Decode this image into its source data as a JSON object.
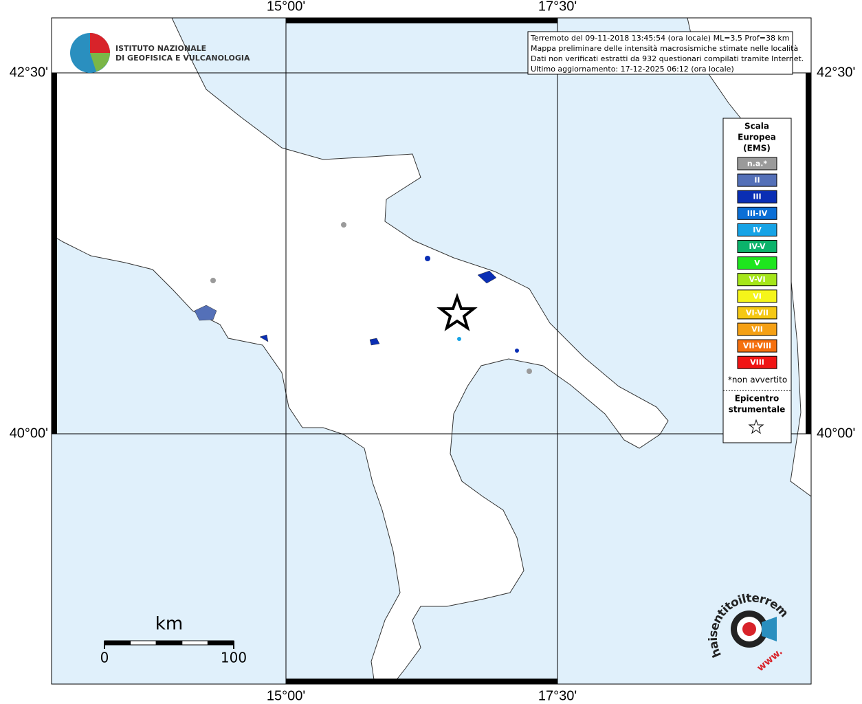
{
  "map": {
    "lon_labels": [
      "15°00'",
      "17°30'"
    ],
    "lat_labels": [
      "42°30'",
      "40°00'"
    ],
    "institute": [
      "ISTITUTO NAZIONALE",
      "DI GEOFISICA E VULCANOLOGIA"
    ],
    "info": [
      "Terremoto del 09-11-2018 13:45:54 (ora locale) ML=3.5 Prof=38 km",
      "Mappa preliminare delle intensità macrosismiche stimate nelle località",
      "Dati non verificati estratti da 932 questionari compilati tramite Internet.",
      "Ultimo aggiornamento: 17-12-2025 06:12 (ora locale)"
    ],
    "legend": {
      "title": [
        "Scala",
        "Europea",
        "(EMS)"
      ],
      "classes": [
        {
          "label": "n.a.*",
          "color": "#9a9a9a"
        },
        {
          "label": "II",
          "color": "#5470b8"
        },
        {
          "label": "III",
          "color": "#0a2eb4"
        },
        {
          "label": "III-IV",
          "color": "#0b6fd6"
        },
        {
          "label": "IV",
          "color": "#16a3e6"
        },
        {
          "label": "IV-V",
          "color": "#0bb36b"
        },
        {
          "label": "V",
          "color": "#1ee61e"
        },
        {
          "label": "V-VI",
          "color": "#a5e61a"
        },
        {
          "label": "VI",
          "color": "#f5f51a"
        },
        {
          "label": "VI-VII",
          "color": "#f5c814"
        },
        {
          "label": "VII",
          "color": "#f5a014"
        },
        {
          "label": "VII-VIII",
          "color": "#f5700f"
        },
        {
          "label": "VIII",
          "color": "#f01414"
        }
      ],
      "note": "*non avvertito",
      "epicenter_title": [
        "Epicentro",
        "strumentale"
      ]
    },
    "scale": {
      "unit": "km",
      "ticks": [
        0,
        100
      ]
    },
    "site": [
      "haisentitoilterremoto.it",
      "www."
    ]
  }
}
